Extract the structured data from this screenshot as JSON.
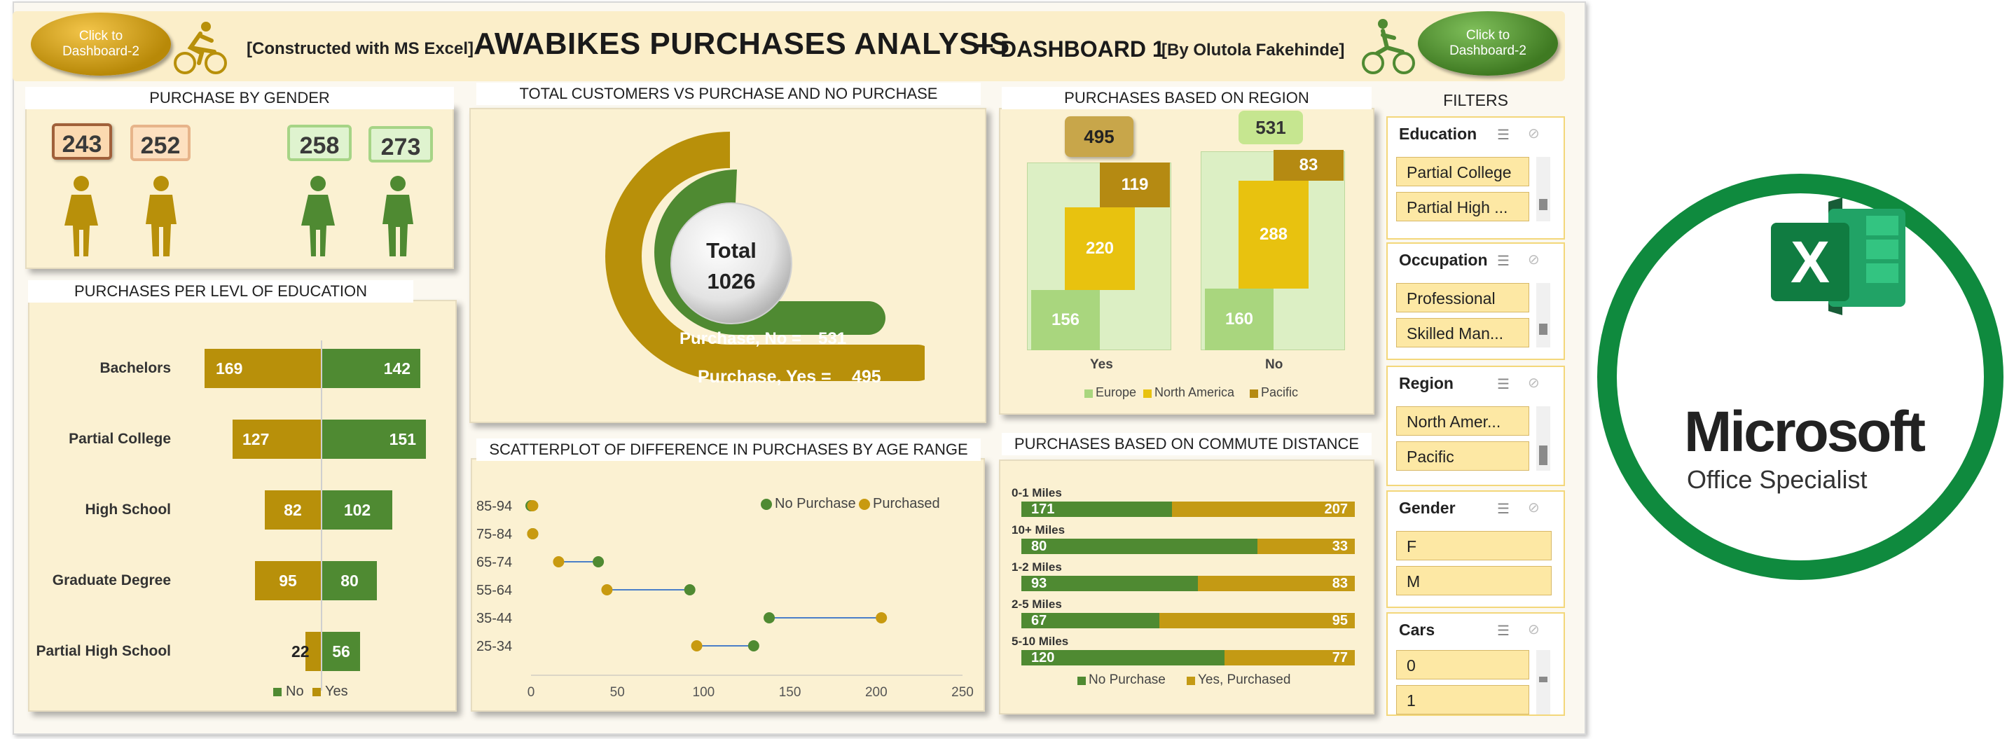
{
  "header": {
    "title": "AWABIKES PURCHASES ANALYSIS",
    "dash": "–",
    "subtitle": "DASHBOARD 1",
    "left_note": "[Constructed with MS Excel]",
    "right_note": "[By Olutola Fakehinde]",
    "nav_left": "Click to Dashboard-2",
    "nav_right": "Click to Dashboard-2"
  },
  "colors": {
    "gold": "#b8900a",
    "green": "#4f8a32",
    "yellow": "#e8c20f",
    "light_green": "#a9d67e",
    "olive": "#b58a12"
  },
  "gender": {
    "title": "PURCHASE BY GENDER",
    "values": [
      "243",
      "252",
      "258",
      "273"
    ]
  },
  "education": {
    "title": "PURCHASES PER LEVL OF EDUCATION",
    "rows": [
      {
        "label": "Bachelors",
        "yes": "169",
        "no": "142"
      },
      {
        "label": "Partial College",
        "yes": "127",
        "no": "151"
      },
      {
        "label": "High School",
        "yes": "82",
        "no": "102"
      },
      {
        "label": "Graduate Degree",
        "yes": "95",
        "no": "80"
      },
      {
        "label": "Partial High School",
        "yes": "22",
        "no": "56"
      }
    ],
    "legend_no": "No",
    "legend_yes": "Yes"
  },
  "donut": {
    "title": "TOTAL CUSTOMERS VS PURCHASE AND NO PURCHASE",
    "total_label": "Total",
    "total_value": "1026",
    "no_label": "Purchase, No =",
    "no_value": "531",
    "yes_label": "Purchase, Yes =",
    "yes_value": "495"
  },
  "region": {
    "title": "PURCHASES BASED ON REGION",
    "columns": [
      {
        "label": "Yes",
        "total": "495",
        "europe": "156",
        "north_america": "220",
        "pacific": "119"
      },
      {
        "label": "No",
        "total": "531",
        "europe": "160",
        "north_america": "288",
        "pacific": "83"
      }
    ],
    "legend": [
      "Europe",
      "North America",
      "Pacific"
    ]
  },
  "scatter": {
    "title": "SCATTERPLOT OF DIFFERENCE IN PURCHASES BY AGE RANGE",
    "legend_no": "No Purchase",
    "legend_yes": "Purchased",
    "ticks": [
      "0",
      "50",
      "100",
      "150",
      "200",
      "250"
    ]
  },
  "commute": {
    "title": "PURCHASES BASED ON COMMUTE DISTANCE",
    "legend_no": "No Purchase",
    "legend_yes": "Yes, Purchased"
  },
  "filters": {
    "title": "FILTERS",
    "slicers": [
      {
        "name": "Education",
        "items": [
          "Partial College",
          "Partial High ..."
        ]
      },
      {
        "name": "Occupation",
        "items": [
          "Professional",
          "Skilled Man..."
        ]
      },
      {
        "name": "Region",
        "items": [
          "North Amer...",
          "Pacific"
        ]
      },
      {
        "name": "Gender",
        "items": [
          "F",
          "M"
        ]
      },
      {
        "name": "Cars",
        "items": [
          "0",
          "1"
        ]
      }
    ]
  },
  "badge": {
    "brand": "Microsoft",
    "product": "Office Specialist",
    "letter": "X"
  },
  "chart_data": [
    {
      "type": "scatter",
      "title": "SCATTERPLOT OF DIFFERENCE IN PURCHASES BY AGE RANGE",
      "categories": [
        "85-94",
        "75-84",
        "65-74",
        "55-64",
        "35-44",
        "25-34"
      ],
      "xlim": [
        0,
        250
      ],
      "series": [
        {
          "name": "No Purchase",
          "values": [
            0,
            1,
            39,
            92,
            138,
            129
          ]
        },
        {
          "name": "Purchased",
          "values": [
            1,
            1,
            16,
            44,
            203,
            96
          ]
        }
      ]
    },
    {
      "type": "bar",
      "title": "PURCHASES BASED ON COMMUTE DISTANCE",
      "categories": [
        "0-1 Miles",
        "10+ Miles",
        "1-2 Miles",
        "2-5 Miles",
        "5-10 Miles"
      ],
      "series": [
        {
          "name": "No Purchase",
          "values": [
            171,
            80,
            93,
            67,
            120
          ]
        },
        {
          "name": "Yes, Purchased",
          "values": [
            207,
            33,
            83,
            95,
            77
          ]
        }
      ]
    }
  ]
}
